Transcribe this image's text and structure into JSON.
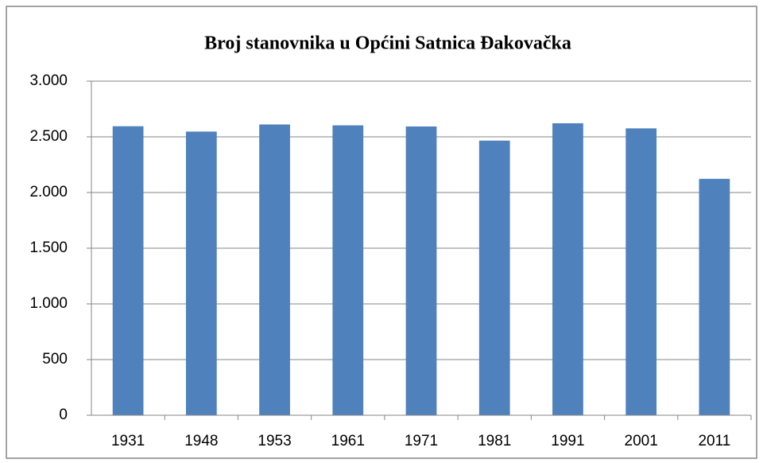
{
  "chart_data": {
    "type": "bar",
    "title": "Broj stanovnika u Općini Satnica Đakovačka",
    "categories": [
      "1931",
      "1948",
      "1953",
      "1961",
      "1971",
      "1981",
      "1991",
      "2001",
      "2011"
    ],
    "values": [
      2595,
      2547,
      2611,
      2603,
      2593,
      2466,
      2622,
      2576,
      2123
    ],
    "color": "#4f81bd",
    "ylim": [
      0,
      3000
    ],
    "yticks": [
      0,
      500,
      {
        "value": 1000,
        "label": "1.000"
      },
      {
        "value": 1500,
        "label": "1.500"
      },
      {
        "value": 2000,
        "label": "2.000"
      },
      {
        "value": 2500,
        "label": "2.500"
      },
      {
        "value": 3000,
        "label": "3.000"
      }
    ],
    "grid": true
  }
}
